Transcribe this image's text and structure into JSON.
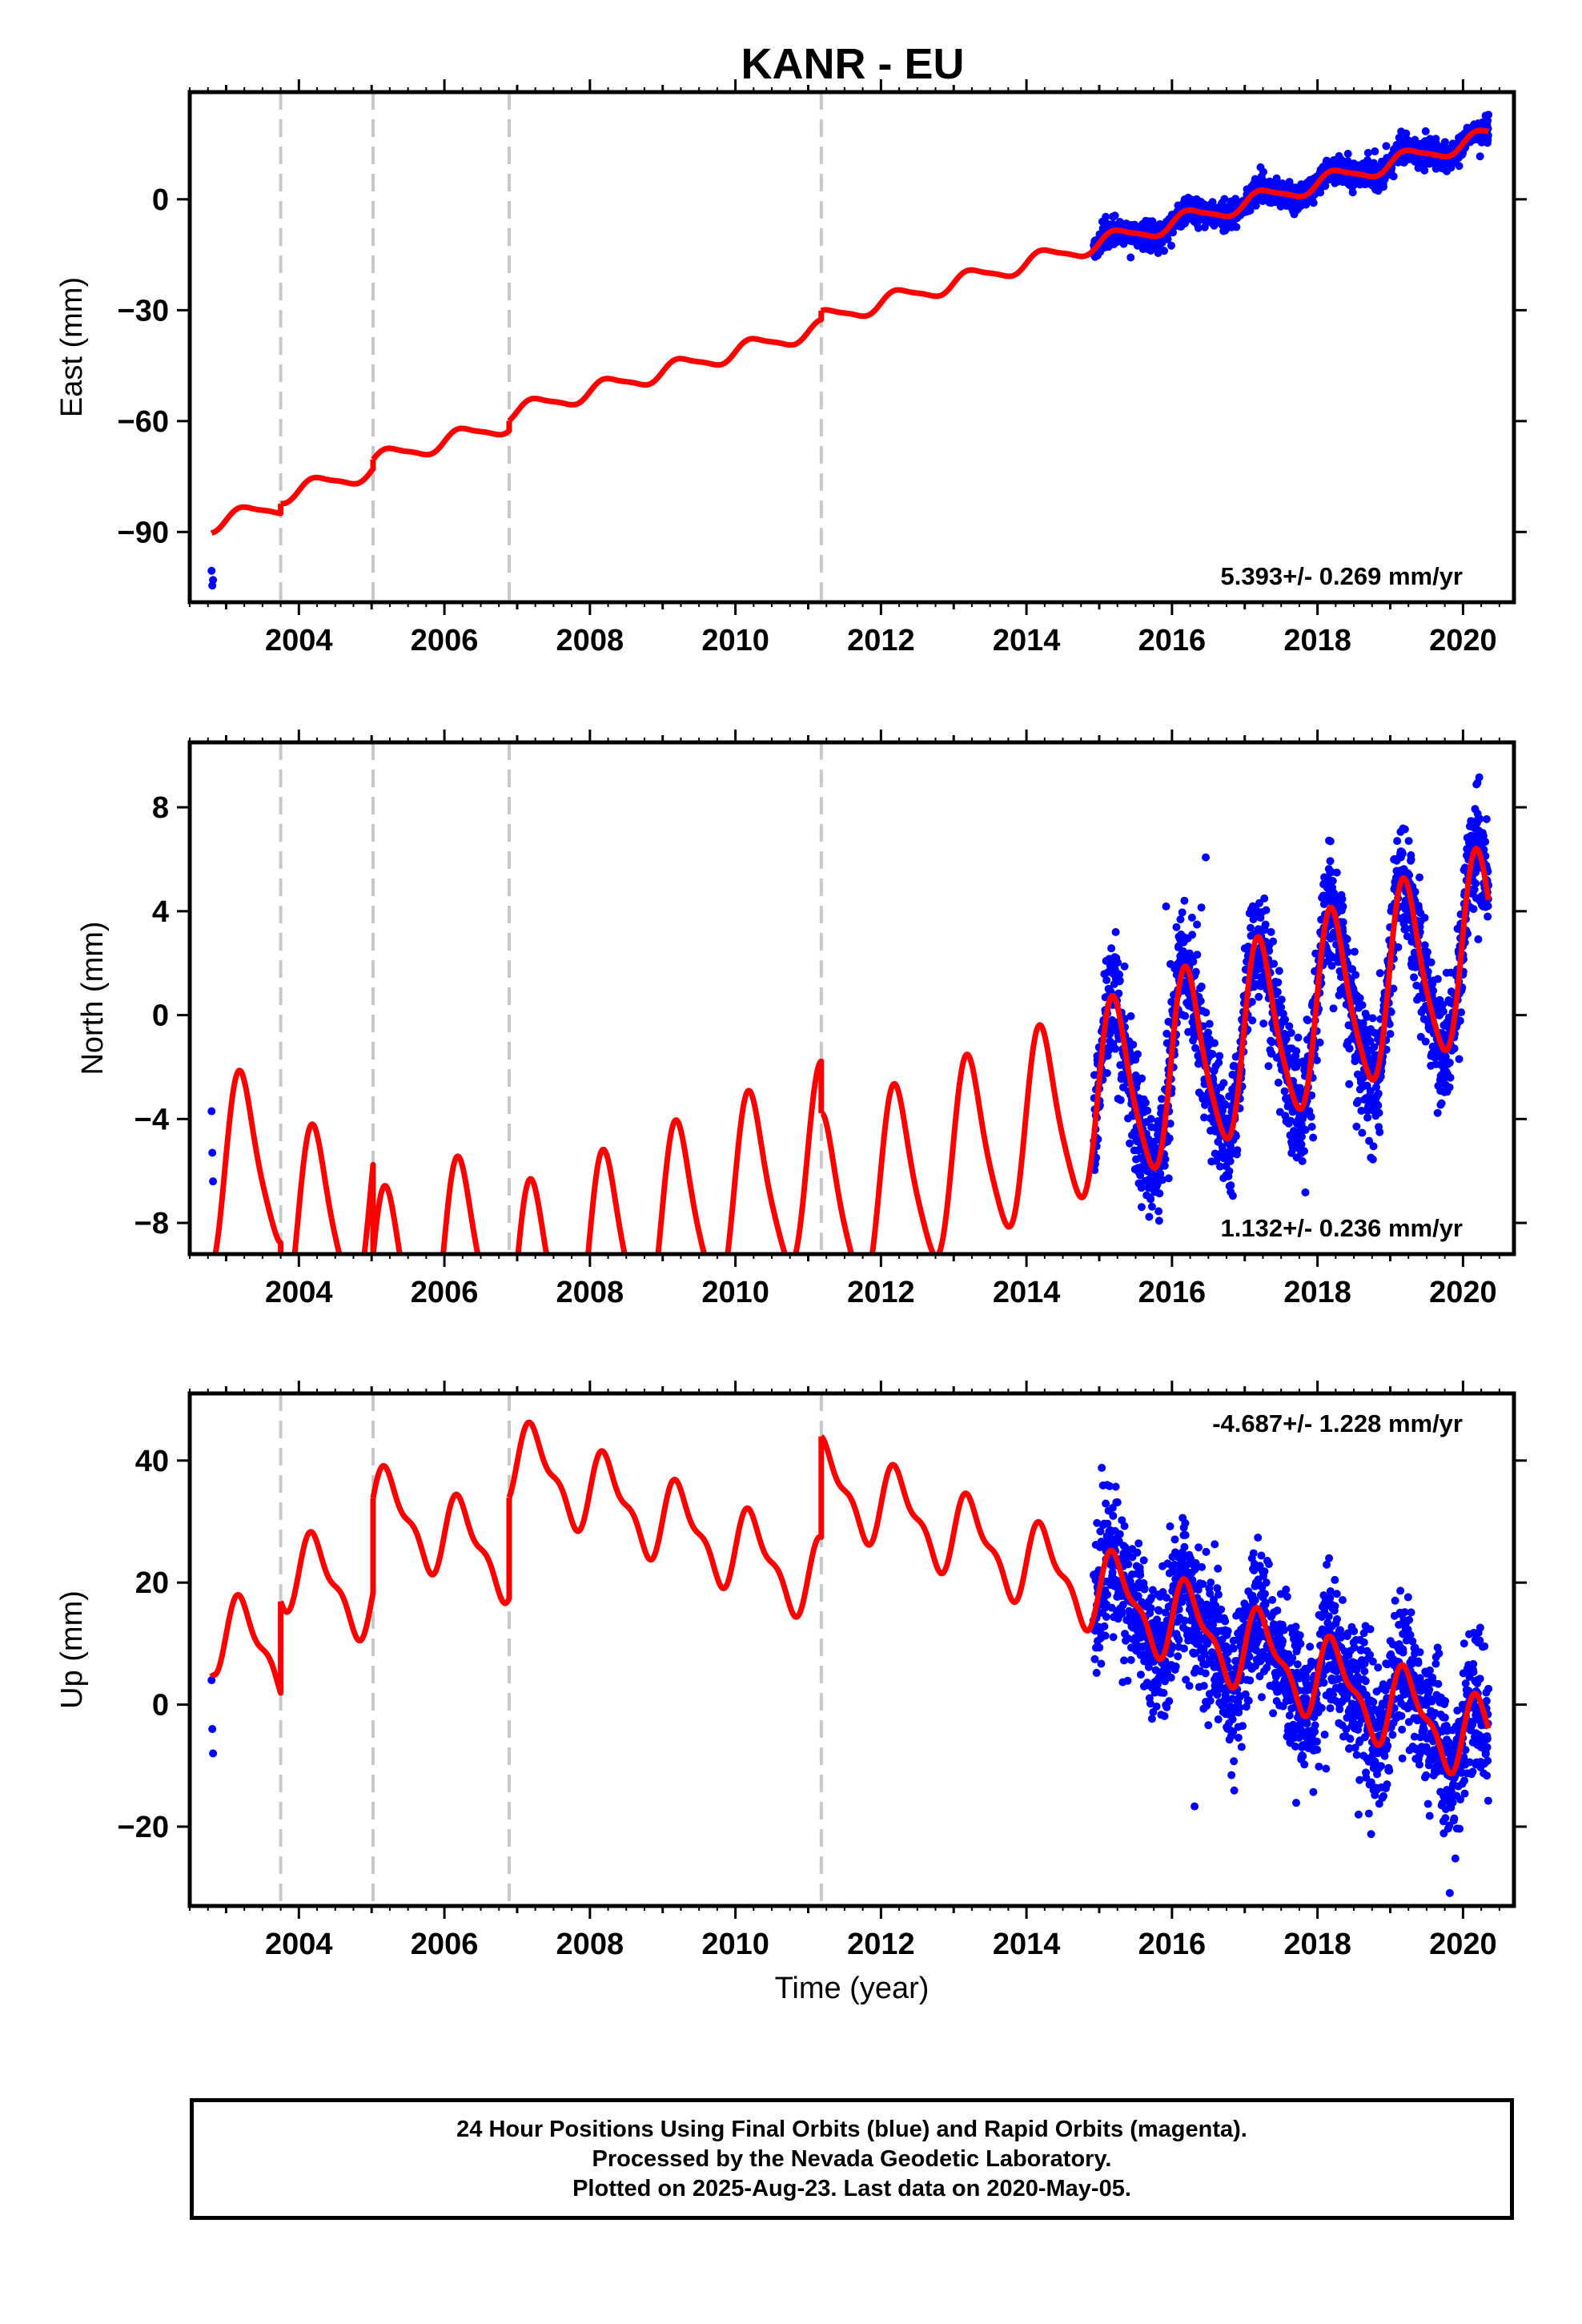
{
  "title": "KANR - EU",
  "colors": {
    "fit": "#ff0000",
    "points": "#0000ff",
    "steps": "#c8c8c8",
    "axis": "#000000"
  },
  "chart_data": [
    {
      "type": "scatter",
      "component": "east",
      "ylabel": "East (mm)",
      "xlabel": "",
      "xlim": [
        2002.5,
        2020.7
      ],
      "ylim": [
        -109,
        29
      ],
      "xticks": [
        2004,
        2006,
        2008,
        2010,
        2012,
        2014,
        2016,
        2018,
        2020
      ],
      "yticks": [
        -90,
        -60,
        -30,
        0
      ],
      "rate_label": "5.393+/- 0.269 mm/yr",
      "steps": [
        2003.75,
        2005.02,
        2006.89,
        2011.18
      ],
      "model": {
        "start": 2002.8,
        "end": 2020.35,
        "t0": 2016.0,
        "intercept": -6.5,
        "rate": 5.393,
        "offsets": [
          2.6,
          2.5,
          2.7,
          2.4
        ],
        "amp_sin": 2.2,
        "amp_cos": 0.0,
        "amp_sin2": 0.5,
        "amp_cos2": 0.0
      },
      "observations": {
        "start": 2014.92,
        "end": 2020.35,
        "scatter_sd": 1.6,
        "early": [
          [
            2002.8,
            -100.5
          ],
          [
            2002.81,
            -104.5
          ],
          [
            2002.82,
            -103.0
          ]
        ]
      }
    },
    {
      "type": "scatter",
      "component": "north",
      "ylabel": "North (mm)",
      "xlabel": "",
      "xlim": [
        2002.5,
        2020.7
      ],
      "ylim": [
        -9.2,
        10.5
      ],
      "xticks": [
        2004,
        2006,
        2008,
        2010,
        2012,
        2014,
        2016,
        2018,
        2020
      ],
      "yticks": [
        -8,
        -4,
        0,
        4,
        8
      ],
      "rate_label": "1.132+/- 0.236 mm/yr",
      "steps": [
        2003.75,
        2005.02,
        2006.89,
        2011.18
      ],
      "model": {
        "start": 2002.8,
        "end": 2020.35,
        "t0": 2016.0,
        "intercept": -2.2,
        "rate": 1.132,
        "offsets": [
          -3.2,
          -3.5,
          -2.0,
          -2.0
        ],
        "amp_sin": 3.4,
        "amp_cos": 0.8,
        "amp_sin2": 0.6,
        "amp_cos2": 0.0
      },
      "observations": {
        "start": 2014.92,
        "end": 2020.35,
        "scatter_sd": 1.1,
        "early": [
          [
            2002.8,
            -3.7
          ],
          [
            2002.81,
            -5.3
          ],
          [
            2002.82,
            -6.4
          ]
        ]
      }
    },
    {
      "type": "scatter",
      "component": "up",
      "ylabel": "Up (mm)",
      "xlabel": "Time (year)",
      "xlim": [
        2002.5,
        2020.7
      ],
      "ylim": [
        -33,
        51
      ],
      "xticks": [
        2004,
        2006,
        2008,
        2010,
        2012,
        2014,
        2016,
        2018,
        2020
      ],
      "yticks": [
        -20,
        0,
        20,
        40
      ],
      "rate_label": "-4.687+/- 1.228 mm/yr",
      "steps": [
        2003.75,
        2005.02,
        2006.89,
        2011.18
      ],
      "model": {
        "start": 2002.8,
        "end": 2020.35,
        "t0": 2016.0,
        "intercept": 14.0,
        "rate": -4.687,
        "offsets": [
          15.0,
          15.5,
          16.5,
          16.5
        ],
        "amp_sin": 6.0,
        "amp_cos": 0.0,
        "amp_sin2": 2.5,
        "amp_cos2": 0.0
      },
      "observations": {
        "start": 2014.92,
        "end": 2020.35,
        "scatter_sd": 5.5,
        "early": [
          [
            2002.8,
            4.0
          ],
          [
            2002.81,
            -4.0
          ],
          [
            2002.82,
            -8.0
          ]
        ]
      }
    }
  ],
  "caption": {
    "line1": "24 Hour Positions Using Final Orbits (blue) and Rapid Orbits (magenta).",
    "line2": "Processed by the Nevada Geodetic Laboratory.",
    "line3": "Plotted on 2025-Aug-23. Last data on 2020-May-05."
  }
}
